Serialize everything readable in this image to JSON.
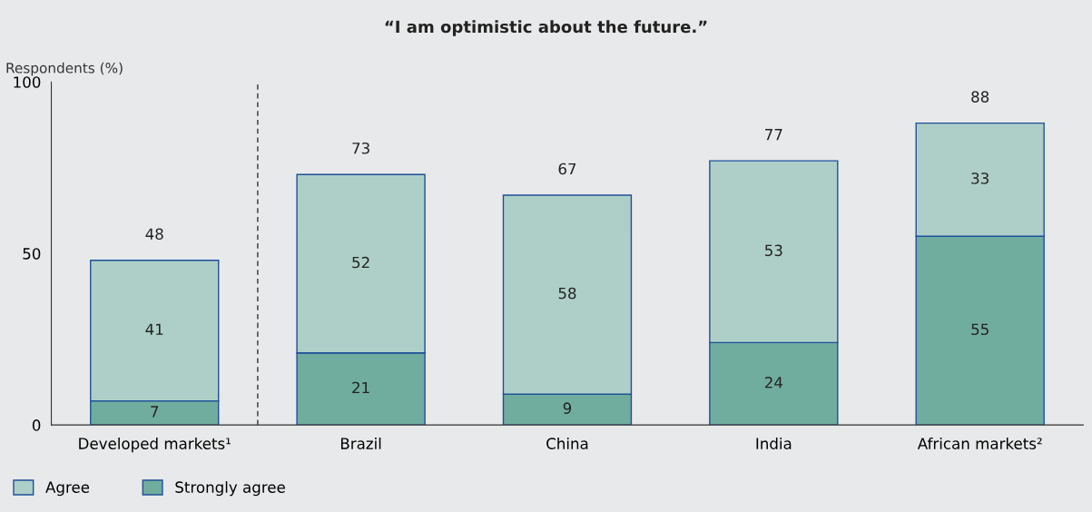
{
  "chart_data": {
    "type": "bar",
    "title": "“I am optimistic about the future.”",
    "ylabel": "Respondents (%)",
    "categories": [
      "Developed markets¹",
      "Brazil",
      "China",
      "India",
      "African markets²"
    ],
    "stacked": true,
    "series": [
      {
        "name": "Strongly agree",
        "color": "#70ad9e",
        "values": [
          7,
          21,
          9,
          24,
          55
        ]
      },
      {
        "name": "Agree",
        "color": "#aecfc7",
        "values": [
          41,
          52,
          58,
          53,
          33
        ]
      }
    ],
    "data_labels": true,
    "totals": [
      "48",
      "73",
      "67",
      "77",
      "88"
    ],
    "ylim": [
      0,
      100
    ],
    "yticks": [
      0,
      50,
      100
    ],
    "grid": false,
    "legend": "bottom left"
  }
}
